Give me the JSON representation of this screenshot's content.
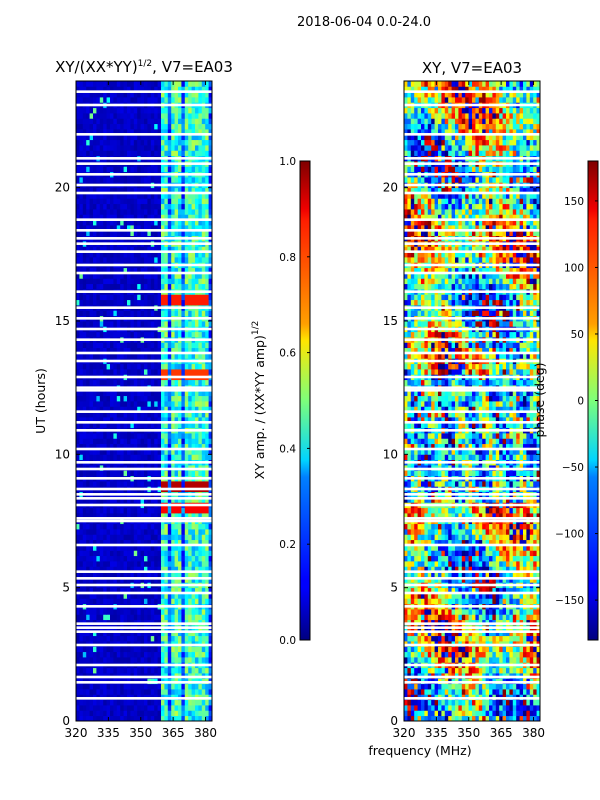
{
  "figure": {
    "suptitle": "2018-06-04 0.0-24.0",
    "xlabel": "frequency (MHz)"
  },
  "chart_data": [
    {
      "type": "heatmap",
      "title_main": "XY/(XX*YY)",
      "title_sup": "1/2",
      "title_tail": ", V7=EA03",
      "ylabel": "UT (hours)",
      "xlim": [
        320,
        383
      ],
      "ylim": [
        0,
        24
      ],
      "xticks": [
        320,
        335,
        350,
        365,
        380
      ],
      "yticks": [
        0,
        5,
        10,
        15,
        20
      ],
      "colorbar": {
        "label_main": "XY amp. / (XX*YY amp)",
        "label_sup": "1/2",
        "range": [
          0.0,
          1.0
        ],
        "ticks": [
          0.0,
          0.2,
          0.4,
          0.6,
          0.8,
          1.0
        ],
        "tick_labels": [
          "0.0",
          "0.2",
          "0.4",
          "0.6",
          "0.8",
          "1.0"
        ],
        "colormap": "jet"
      },
      "gaps_hours": [
        0.85,
        1.45,
        1.65,
        2.1,
        2.85,
        3.35,
        3.5,
        3.65,
        4.3,
        4.8,
        5.1,
        5.35,
        5.6,
        6.6,
        7.5,
        7.6,
        8.1,
        8.35,
        8.5,
        8.7,
        9.1,
        9.45,
        9.7,
        10.2,
        10.9,
        11.2,
        11.6,
        12.4,
        12.5,
        12.9,
        13.5,
        13.8,
        14.3,
        14.7,
        15.1,
        15.5,
        16.1,
        16.8,
        17.1,
        17.6,
        17.9,
        18.1,
        18.4,
        18.8,
        19.8,
        20.1,
        20.5,
        20.9,
        21.1,
        22.0,
        23.1,
        23.6
      ],
      "bright_channels_mhz": [
        [
          359,
          362
        ],
        [
          364,
          366
        ],
        [
          366,
          369
        ],
        [
          371,
          373
        ],
        [
          374,
          378
        ],
        [
          379,
          381
        ]
      ],
      "hot_spots": [
        {
          "hours": 15.7,
          "value": 0.85
        },
        {
          "hours": 12.9,
          "value": 0.82
        },
        {
          "hours": 8.75,
          "value": 0.95
        },
        {
          "hours": 7.95,
          "value": 0.88
        }
      ]
    },
    {
      "type": "heatmap",
      "title_main": "XY, V7=EA03",
      "xlim": [
        320,
        383
      ],
      "ylim": [
        0,
        24
      ],
      "xticks": [
        320,
        335,
        350,
        365,
        380
      ],
      "yticks": [
        0,
        5,
        10,
        15,
        20
      ],
      "colorbar": {
        "label_main": "phase (deg)",
        "range": [
          -180,
          180
        ],
        "ticks": [
          -150,
          -100,
          -50,
          0,
          50,
          100,
          150
        ],
        "tick_labels": [
          "−150",
          "−100",
          "−50",
          "0",
          "50",
          "100",
          "150"
        ],
        "colormap": "jet"
      },
      "gaps_hours": [
        0.85,
        1.45,
        1.65,
        2.1,
        2.85,
        3.35,
        3.5,
        3.65,
        4.3,
        4.8,
        5.1,
        5.35,
        5.6,
        6.6,
        7.5,
        7.6,
        8.1,
        8.35,
        8.5,
        8.7,
        9.1,
        9.45,
        9.7,
        10.2,
        10.9,
        11.2,
        11.6,
        12.4,
        12.5,
        12.9,
        13.5,
        13.8,
        14.3,
        14.7,
        15.1,
        15.5,
        16.1,
        16.8,
        17.1,
        17.6,
        17.9,
        18.1,
        18.4,
        18.8,
        19.8,
        20.1,
        20.5,
        20.9,
        21.1,
        22.0,
        23.1,
        23.6
      ]
    }
  ]
}
